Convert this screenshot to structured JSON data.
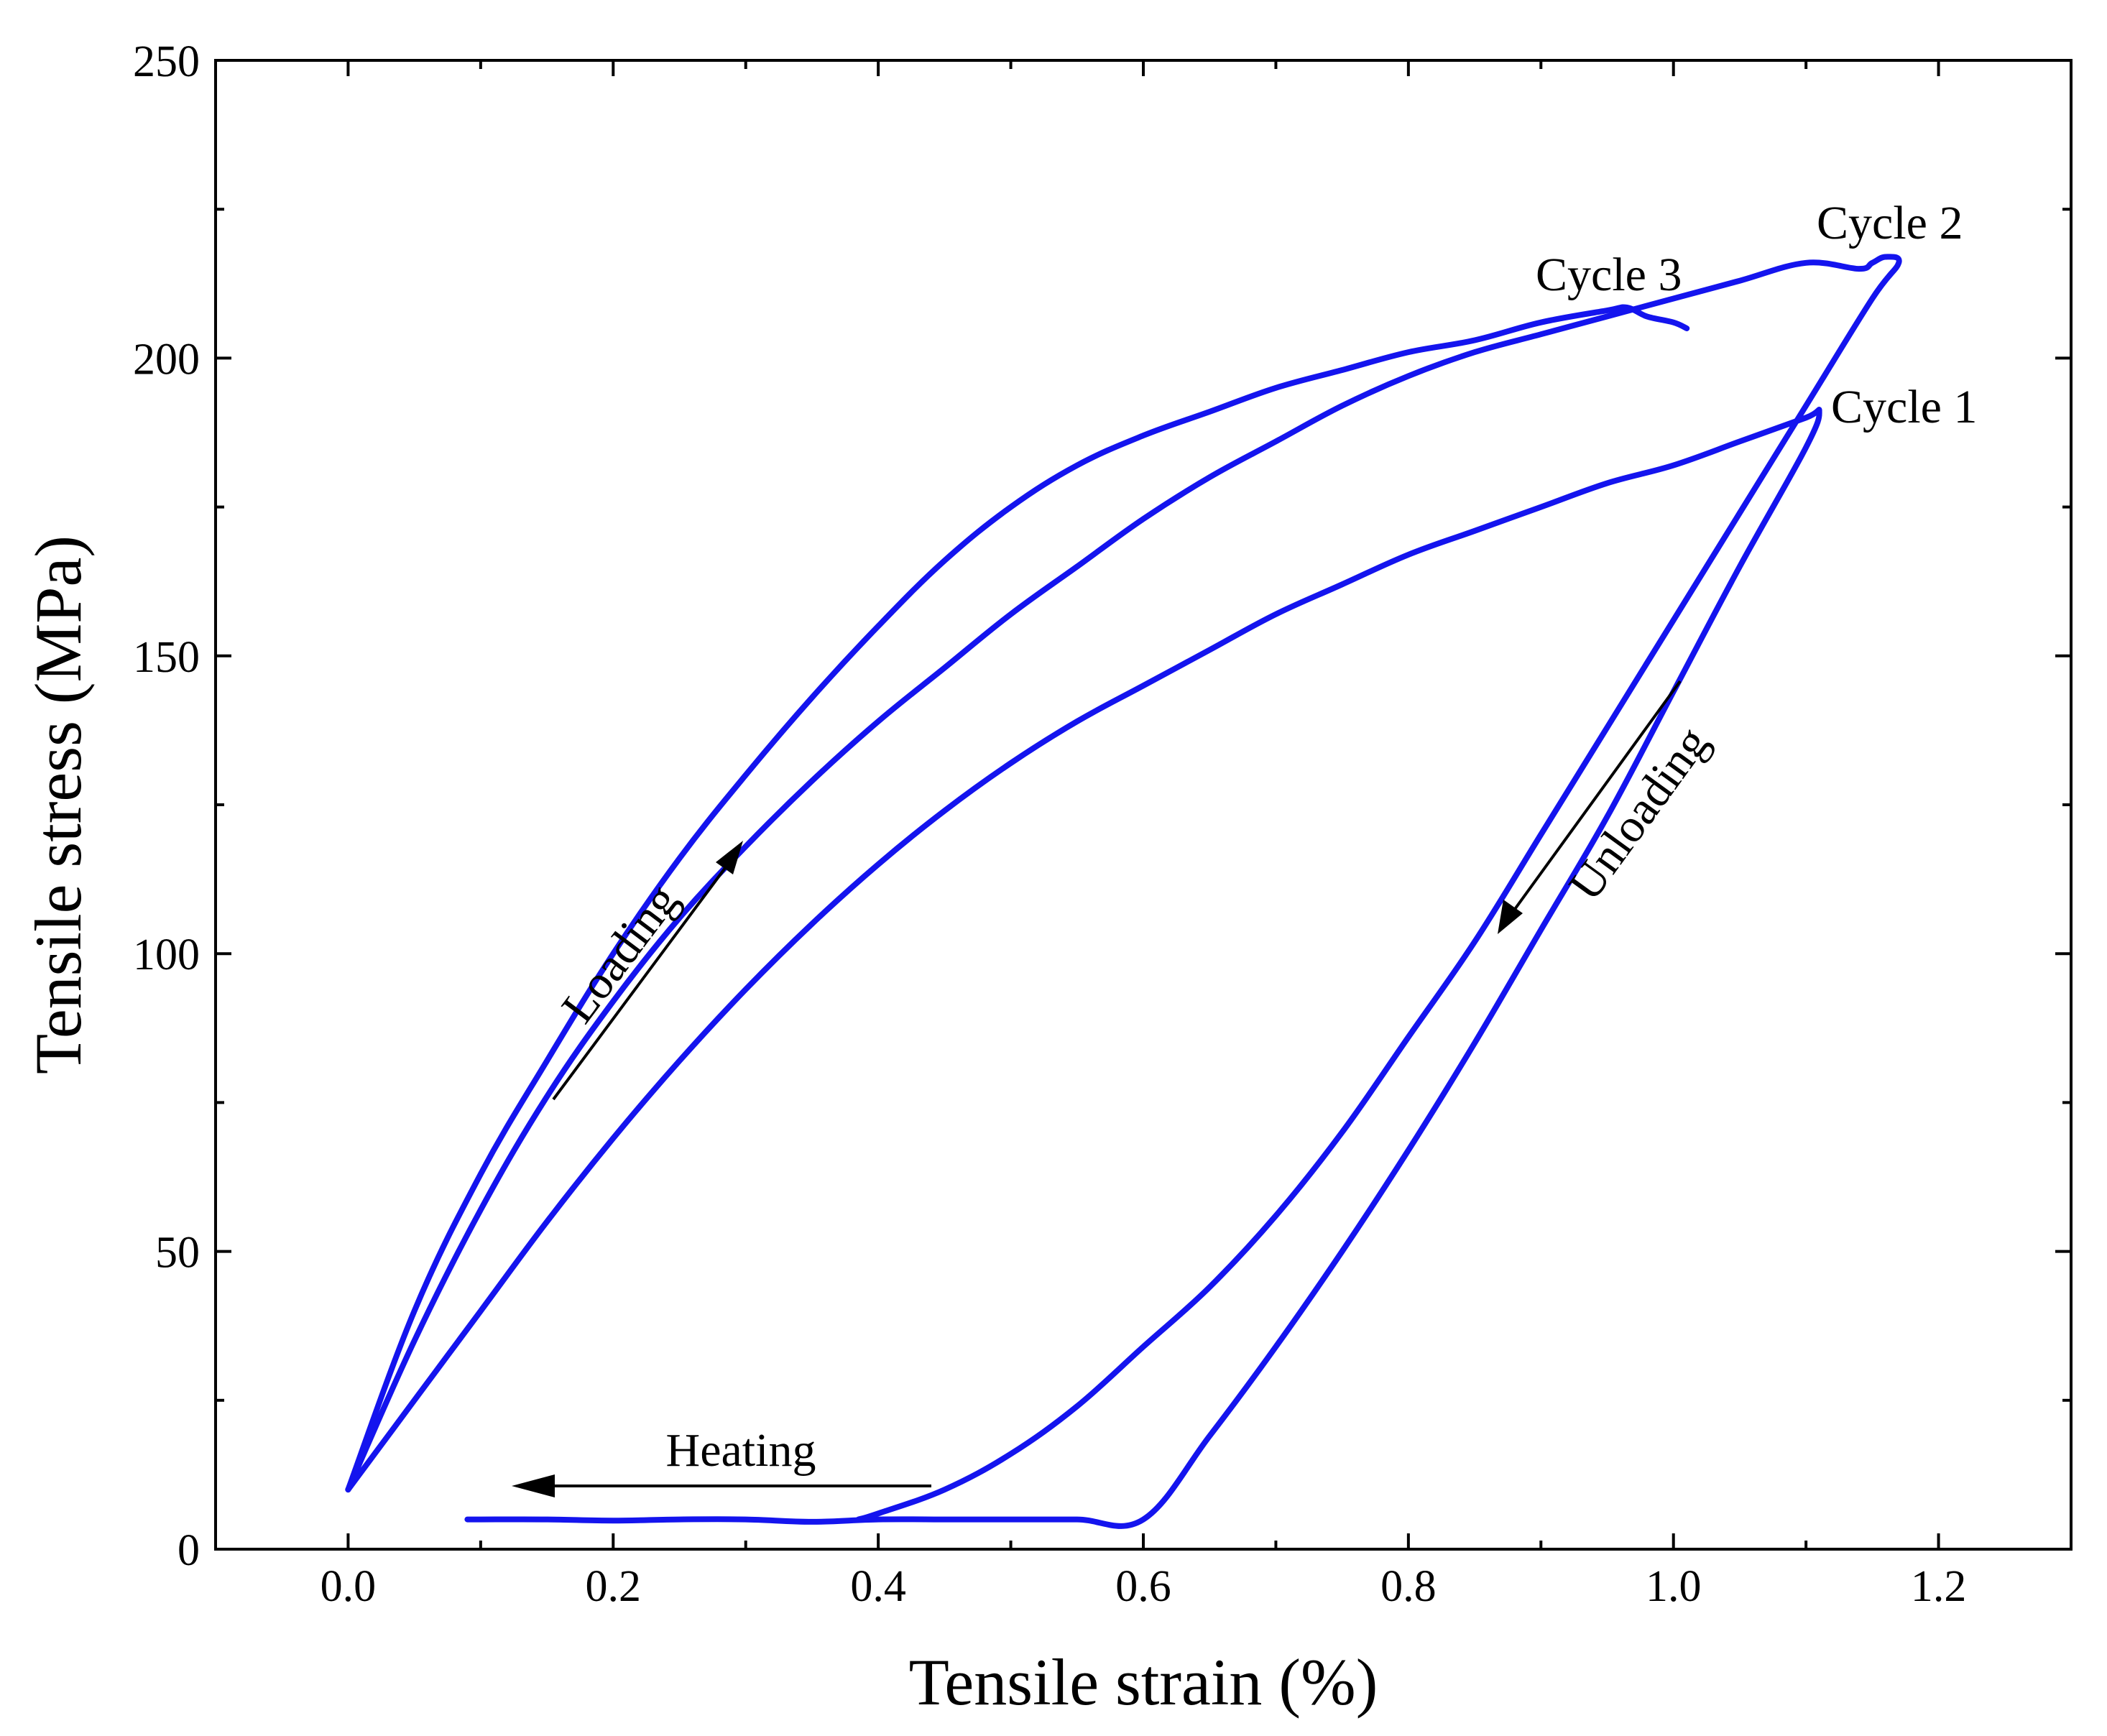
{
  "chart_data": {
    "type": "line",
    "title": "",
    "xlabel": "Tensile strain (%)",
    "ylabel": "Tensile stress (MPa)",
    "xlim": [
      -0.1,
      1.3
    ],
    "ylim": [
      0,
      250
    ],
    "x_ticks": [
      "0.0",
      "0.2",
      "0.4",
      "0.6",
      "0.8",
      "1.0",
      "1.2"
    ],
    "x_tick_values": [
      0.0,
      0.2,
      0.4,
      0.6,
      0.8,
      1.0,
      1.2
    ],
    "y_ticks": [
      "0",
      "50",
      "100",
      "150",
      "200",
      "250"
    ],
    "y_tick_values": [
      0,
      50,
      100,
      150,
      200,
      250
    ],
    "grid": false,
    "line_color": "#1414ee",
    "series": [
      {
        "name": "Cycle 1",
        "x": [
          0.0,
          0.05,
          0.1,
          0.15,
          0.2,
          0.25,
          0.3,
          0.35,
          0.4,
          0.45,
          0.5,
          0.55,
          0.6,
          0.65,
          0.7,
          0.75,
          0.8,
          0.85,
          0.9,
          0.95,
          1.0,
          1.05,
          1.1,
          1.11,
          1.1,
          1.05,
          1.0,
          0.95,
          0.9,
          0.85,
          0.8,
          0.75,
          0.7,
          0.65,
          0.6,
          0.55,
          0.5,
          0.48,
          0.45,
          0.4,
          0.35,
          0.3,
          0.25,
          0.2,
          0.15,
          0.1,
          0.09
        ],
        "y": [
          10,
          25,
          40,
          55,
          69,
          82,
          94,
          105,
          115,
          124,
          132,
          139,
          145,
          151,
          157,
          162,
          167,
          171,
          175,
          179,
          182,
          186,
          190,
          191,
          185,
          165,
          144,
          123,
          104,
          85,
          67,
          50,
          34,
          19,
          5,
          5,
          5,
          5,
          5,
          5,
          4.6,
          5,
          5,
          4.8,
          5,
          5,
          5
        ]
      },
      {
        "name": "Cycle 2",
        "x": [
          0.0,
          0.05,
          0.1,
          0.15,
          0.2,
          0.25,
          0.3,
          0.35,
          0.4,
          0.45,
          0.5,
          0.55,
          0.6,
          0.65,
          0.7,
          0.75,
          0.8,
          0.85,
          0.9,
          0.95,
          1.0,
          1.05,
          1.1,
          1.14,
          1.15,
          1.16,
          1.17,
          1.15,
          1.1,
          1.05,
          1.0,
          0.95,
          0.9,
          0.85,
          0.8,
          0.75,
          0.7,
          0.65,
          0.6,
          0.55,
          0.5,
          0.45,
          0.4,
          0.385
        ],
        "y": [
          10,
          35,
          57,
          76,
          92,
          106,
          118,
          129,
          139,
          148,
          157,
          165,
          173,
          180,
          186,
          192,
          197,
          201,
          204,
          207,
          210,
          213,
          216,
          215,
          216,
          217,
          216,
          210,
          192,
          174,
          156,
          138,
          120,
          102,
          86,
          70,
          56,
          44,
          34,
          24,
          16,
          10,
          6,
          5
        ]
      },
      {
        "name": "Cycle 3",
        "x": [
          0.0,
          0.05,
          0.1,
          0.15,
          0.2,
          0.25,
          0.3,
          0.35,
          0.4,
          0.45,
          0.5,
          0.55,
          0.6,
          0.65,
          0.7,
          0.75,
          0.8,
          0.85,
          0.9,
          0.95,
          0.965,
          0.98,
          1.0,
          1.01
        ],
        "y": [
          10,
          40,
          63,
          82,
          100,
          116,
          130,
          143,
          155,
          166,
          175,
          182,
          187,
          191,
          195,
          198,
          201,
          203,
          206,
          208,
          208.5,
          207,
          206,
          205
        ]
      }
    ],
    "annotations": {
      "cycle1": "Cycle 1",
      "cycle2": "Cycle 2",
      "cycle3": "Cycle 3",
      "loading": "Loading",
      "unloading": "Unloading",
      "heating": "Heating"
    }
  }
}
